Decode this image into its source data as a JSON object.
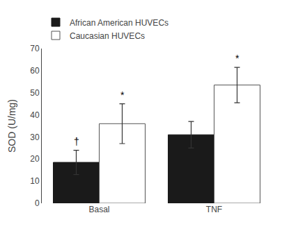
{
  "chart_data": {
    "type": "bar",
    "categories": [
      "Basal",
      "TNF"
    ],
    "series": [
      {
        "name": "African American HUVECs",
        "color": "#1a1a1a",
        "values": [
          18.5,
          31.0
        ],
        "error": [
          5.5,
          6.0
        ],
        "annotations": [
          "†",
          null
        ]
      },
      {
        "name": "Caucasian HUVECs",
        "color": "#ffffff",
        "values": [
          36.0,
          53.5
        ],
        "error": [
          9.0,
          8.0
        ],
        "annotations": [
          "*",
          "*"
        ]
      }
    ],
    "ylabel": "SOD (U/mg)",
    "ylim": [
      0,
      70
    ],
    "yticks": [
      0,
      10,
      20,
      30,
      40,
      50,
      60,
      70
    ],
    "grid": false,
    "legend": "top"
  }
}
